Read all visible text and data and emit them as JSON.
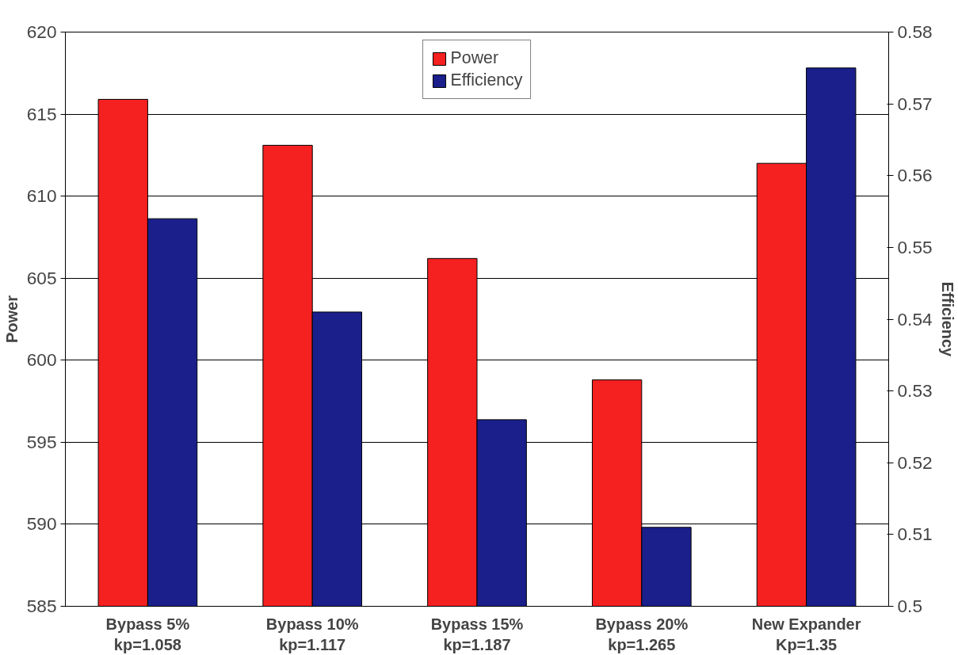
{
  "chart_data": {
    "type": "bar",
    "xlabel": null,
    "ylabel": "Power",
    "y2label": "Efficiency",
    "categories": [
      "Bypass 5%\nkp=1.058",
      "Bypass 10%\nkp=1.117",
      "Bypass 15%\nkp=1.187",
      "Bypass 20%\nkp=1.265",
      "New Expander\nKp=1.35"
    ],
    "series": [
      {
        "name": "Power",
        "color": "#f52020",
        "values": [
          615.9,
          613.1,
          606.2,
          598.8,
          612.0
        ]
      },
      {
        "name": "Efficiency",
        "color": "#1a1f8c",
        "axis": "y2",
        "values": [
          0.554,
          0.541,
          0.526,
          0.511,
          0.575
        ]
      }
    ],
    "ylim": [
      585,
      620
    ],
    "yticks": [
      585,
      590,
      595,
      600,
      605,
      610,
      615,
      620
    ],
    "y2lim": [
      0.5,
      0.58
    ],
    "y2ticks": [
      {
        "value": 0.5,
        "label": "0.5"
      },
      {
        "value": 0.51,
        "label": "0.51"
      },
      {
        "value": 0.52,
        "label": "0.52"
      },
      {
        "value": 0.53,
        "label": "0.53"
      },
      {
        "value": 0.54,
        "label": "0.54"
      },
      {
        "value": 0.55,
        "label": "0.55"
      },
      {
        "value": 0.56,
        "label": "0.56"
      },
      {
        "value": 0.57,
        "label": "0.57"
      },
      {
        "value": 0.58,
        "label": "0.58"
      }
    ],
    "grid": "y",
    "legend": "top"
  }
}
